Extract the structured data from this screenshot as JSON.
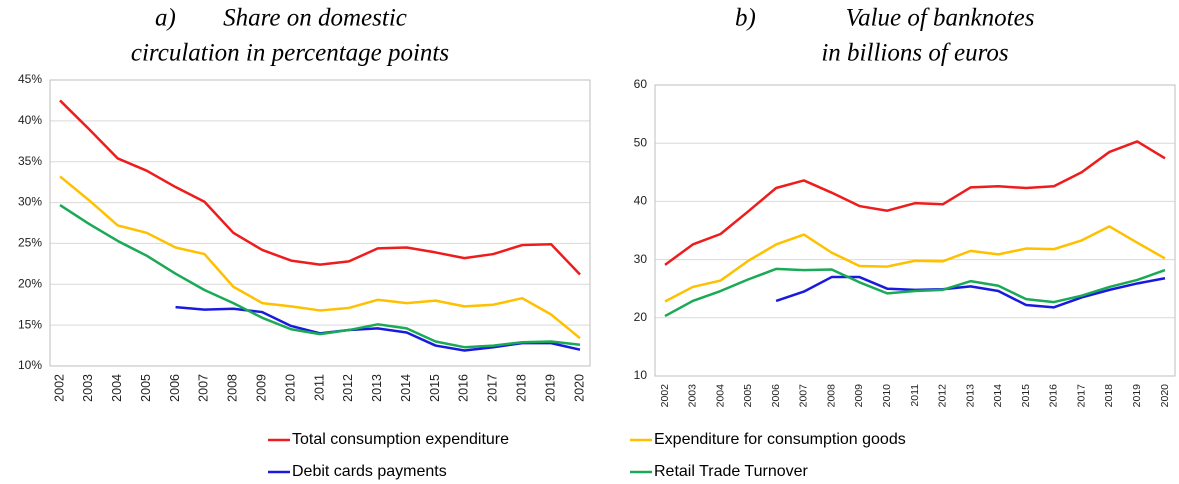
{
  "chart_data": [
    {
      "type": "line",
      "panel_label": "a)",
      "title": [
        "Share on domestic",
        "circulation in percentage points"
      ],
      "categories": [
        "2002",
        "2003",
        "2004",
        "2005",
        "2006",
        "2007",
        "2008",
        "2009",
        "2010",
        "2011",
        "2012",
        "2013",
        "2014",
        "2015",
        "2016",
        "2017",
        "2018",
        "2019",
        "2020"
      ],
      "ylim": [
        10,
        45
      ],
      "yticks": [
        {
          "value": 10,
          "label": "10%"
        },
        {
          "value": 15,
          "label": "15%"
        },
        {
          "value": 20,
          "label": "20%"
        },
        {
          "value": 25,
          "label": "25%"
        },
        {
          "value": 30,
          "label": "30%"
        },
        {
          "value": 35,
          "label": "35%"
        },
        {
          "value": 40,
          "label": "40%"
        },
        {
          "value": 45,
          "label": "45%"
        }
      ],
      "grid": true,
      "series": [
        {
          "name": "Total consumption expenditure",
          "color": "#ee1c1c",
          "values": [
            42.5,
            39,
            35.4,
            33.9,
            31.9,
            30.1,
            26.3,
            24.2,
            22.9,
            22.4,
            22.8,
            24.4,
            24.5,
            23.9,
            23.2,
            23.7,
            24.8,
            24.9,
            21.2
          ]
        },
        {
          "name": "Expenditure for consumption goods",
          "color": "#ffc000",
          "values": [
            33.2,
            30.3,
            27.2,
            26.3,
            24.5,
            23.7,
            19.7,
            17.7,
            17.3,
            16.8,
            17.1,
            18.1,
            17.7,
            18.0,
            17.3,
            17.5,
            18.3,
            16.3,
            13.4
          ]
        },
        {
          "name": "Debit cards payments",
          "color": "#1a1adf",
          "values": [
            null,
            null,
            null,
            null,
            17.2,
            16.9,
            17.0,
            16.6,
            14.9,
            14.0,
            14.4,
            14.6,
            14.1,
            12.5,
            11.9,
            12.3,
            12.8,
            12.8,
            12.0
          ]
        },
        {
          "name": "Retail Trade Turnover",
          "color": "#1aaa55",
          "values": [
            29.7,
            27.4,
            25.3,
            23.5,
            21.3,
            19.3,
            17.7,
            15.9,
            14.5,
            13.9,
            14.4,
            15.1,
            14.6,
            13.0,
            12.3,
            12.5,
            12.9,
            13.0,
            12.6
          ]
        }
      ]
    },
    {
      "type": "line",
      "panel_label": "b)",
      "title": [
        "Value of banknotes",
        "in billions of euros"
      ],
      "categories": [
        "2002",
        "2003",
        "2004",
        "2005",
        "2006",
        "2007",
        "2008",
        "2009",
        "2010",
        "2011",
        "2012",
        "2013",
        "2014",
        "2015",
        "2016",
        "2017",
        "2018",
        "2019",
        "2020"
      ],
      "ylim": [
        10,
        60
      ],
      "yticks": [
        10,
        20,
        30,
        40,
        50,
        60
      ],
      "grid": true,
      "series": [
        {
          "color": "#ee1c1c",
          "values": [
            29.1,
            32.6,
            34.4,
            38.3,
            42.3,
            43.6,
            41.5,
            39.2,
            38.4,
            39.7,
            39.5,
            42.4,
            42.6,
            42.3,
            42.6,
            45.0,
            48.5,
            50.3,
            47.4
          ]
        },
        {
          "color": "#ffc000",
          "values": [
            22.8,
            25.3,
            26.4,
            29.8,
            32.6,
            34.3,
            31.2,
            28.9,
            28.8,
            29.8,
            29.7,
            31.5,
            30.9,
            31.9,
            31.8,
            33.3,
            35.7,
            32.9,
            30.2
          ]
        },
        {
          "color": "#1a1adf",
          "values": [
            null,
            null,
            null,
            null,
            22.9,
            24.5,
            27.0,
            27.0,
            25.0,
            24.8,
            24.9,
            25.4,
            24.6,
            22.2,
            21.8,
            23.5,
            24.8,
            25.9,
            26.8
          ]
        },
        {
          "color": "#1aaa55",
          "values": [
            20.3,
            22.9,
            24.6,
            26.6,
            28.4,
            28.2,
            28.3,
            26.1,
            24.2,
            24.6,
            24.8,
            26.3,
            25.5,
            23.2,
            22.7,
            23.8,
            25.3,
            26.5,
            28.2
          ]
        }
      ]
    }
  ]
}
